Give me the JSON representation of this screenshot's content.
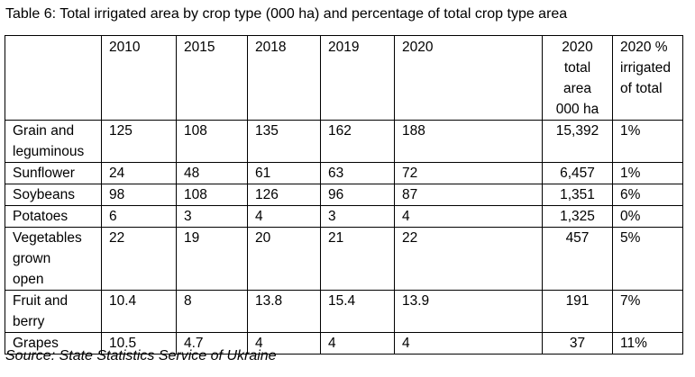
{
  "caption": "Table 6: Total irrigated area by crop type (000 ha) and percentage of total crop type area",
  "table": {
    "headers": [
      "",
      "2010",
      "2015",
      "2018",
      "2019",
      "2020",
      "2020 total area 000 ha",
      "2020 % irrigated of total"
    ],
    "header_lines": {
      "total_area": [
        "2020",
        "total",
        "area",
        "000 ha"
      ],
      "pct_irrigated": [
        "2020 %",
        "irrigated",
        "of total"
      ]
    },
    "rows": [
      {
        "crop_lines": [
          "Grain and",
          "leguminous"
        ],
        "values": [
          "125",
          "108",
          "135",
          "162",
          "188",
          "15,392",
          "1%"
        ]
      },
      {
        "crop_lines": [
          "Sunflower"
        ],
        "values": [
          "24",
          "48",
          "61",
          "63",
          "72",
          "6,457",
          "1%"
        ]
      },
      {
        "crop_lines": [
          "Soybeans"
        ],
        "values": [
          "98",
          "108",
          "126",
          "96",
          "87",
          "1,351",
          "6%"
        ]
      },
      {
        "crop_lines": [
          "Potatoes"
        ],
        "values": [
          "6",
          "3",
          "4",
          "3",
          "4",
          "1,325",
          "0%"
        ]
      },
      {
        "crop_lines": [
          "Vegetables",
          "grown",
          "open"
        ],
        "values": [
          "22",
          "19",
          "20",
          "21",
          "22",
          "457",
          "5%"
        ]
      },
      {
        "crop_lines": [
          "Fruit and",
          "berry"
        ],
        "values": [
          "10.4",
          "8",
          "13.8",
          "15.4",
          "13.9",
          "191",
          "7%"
        ]
      },
      {
        "crop_lines": [
          "Grapes"
        ],
        "values": [
          "10.5",
          "4.7",
          "4",
          "4",
          "4",
          "37",
          "11%"
        ]
      }
    ]
  },
  "source": "Source: State Statistics Service of Ukraine"
}
